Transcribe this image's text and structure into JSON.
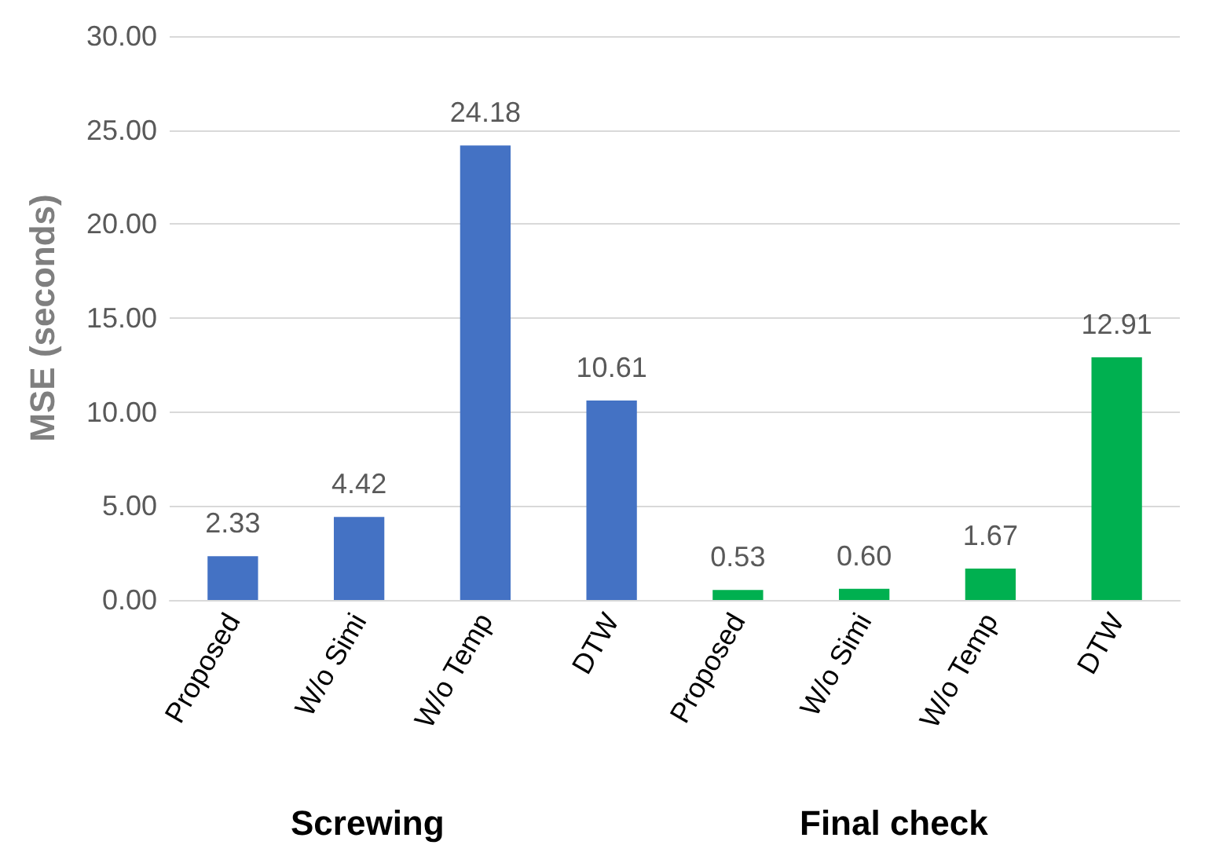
{
  "chart_data": {
    "type": "bar",
    "ylabel": "MSE (seconds)",
    "categories": [
      "Proposed",
      "W/o Simi",
      "W/o Temp",
      "DTW",
      "Proposed",
      "W/o Simi",
      "W/o Temp",
      "DTW"
    ],
    "values": [
      2.33,
      4.42,
      24.18,
      10.61,
      0.53,
      0.6,
      1.67,
      12.91
    ],
    "value_labels": [
      "2.33",
      "4.42",
      "24.18",
      "10.61",
      "0.53",
      "0.60",
      "1.67",
      "12.91"
    ],
    "colors": [
      "#4472c4",
      "#4472c4",
      "#4472c4",
      "#4472c4",
      "#00b050",
      "#00b050",
      "#00b050",
      "#00b050"
    ],
    "ylim": [
      0,
      30
    ],
    "yticks": [
      {
        "value": 0,
        "label": "0.00"
      },
      {
        "value": 5,
        "label": "5.00"
      },
      {
        "value": 10,
        "label": "10.00"
      },
      {
        "value": 15,
        "label": "15.00"
      },
      {
        "value": 20,
        "label": "20.00"
      },
      {
        "value": 25,
        "label": "25.00"
      },
      {
        "value": 30,
        "label": "30.00"
      }
    ],
    "grid": "y",
    "annotations": [
      "Screwing",
      "Final check"
    ]
  }
}
